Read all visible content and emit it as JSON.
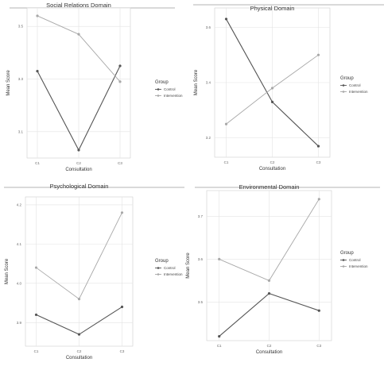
{
  "chart_data": [
    {
      "type": "line",
      "title": "Social Relations Domain",
      "xlabel": "Consultation",
      "ylabel": "Mean Score",
      "categories": [
        "C1",
        "C2",
        "C3"
      ],
      "y_ticks": [
        "3.1",
        "3.3",
        "3.5"
      ],
      "y_tick_values": [
        3.1,
        3.3,
        3.5
      ],
      "ylim": [
        3.0,
        3.57
      ],
      "legend_title": "Group",
      "legend_position": "right",
      "grid": true,
      "series": [
        {
          "name": "Control",
          "values": [
            3.33,
            3.03,
            3.35
          ],
          "color": "#555555"
        },
        {
          "name": "Intervention",
          "values": [
            3.54,
            3.47,
            3.29
          ],
          "color": "#a8a8a8"
        }
      ]
    },
    {
      "type": "line",
      "title": "Physical Domain",
      "xlabel": "Consultation",
      "ylabel": "Mean Score",
      "categories": [
        "C1",
        "C2",
        "C3"
      ],
      "y_ticks": [
        "3.2",
        "3.4",
        "3.6"
      ],
      "y_tick_values": [
        3.2,
        3.4,
        3.6
      ],
      "ylim": [
        3.13,
        3.67
      ],
      "legend_title": "Group",
      "legend_position": "right",
      "grid": true,
      "series": [
        {
          "name": "Control",
          "values": [
            3.63,
            3.33,
            3.17
          ],
          "color": "#555555"
        },
        {
          "name": "Intervention",
          "values": [
            3.25,
            3.38,
            3.5
          ],
          "color": "#a8a8a8"
        }
      ]
    },
    {
      "type": "line",
      "title": "Psychological Domain",
      "xlabel": "Consultation",
      "ylabel": "Mean Score",
      "categories": [
        "C1",
        "C2",
        "C3"
      ],
      "y_ticks": [
        "3.9",
        "4.0",
        "4.1",
        "4.2"
      ],
      "y_tick_values": [
        3.9,
        4.0,
        4.1,
        4.2
      ],
      "ylim": [
        3.84,
        4.22
      ],
      "legend_title": "Group",
      "legend_position": "right",
      "grid": true,
      "series": [
        {
          "name": "Control",
          "values": [
            3.92,
            3.87,
            3.94
          ],
          "color": "#555555"
        },
        {
          "name": "Intervention",
          "values": [
            4.04,
            3.96,
            4.18
          ],
          "color": "#a8a8a8"
        }
      ]
    },
    {
      "type": "line",
      "title": "Environmental Domain",
      "xlabel": "Consultation",
      "ylabel": "Mean Score",
      "categories": [
        "C1",
        "C2",
        "C3"
      ],
      "y_ticks": [
        "3.5",
        "3.6",
        "3.7"
      ],
      "y_tick_values": [
        3.5,
        3.6,
        3.7
      ],
      "ylim": [
        3.41,
        3.76
      ],
      "legend_title": "Group",
      "legend_position": "right",
      "grid": true,
      "series": [
        {
          "name": "Control",
          "values": [
            3.42,
            3.52,
            3.48
          ],
          "color": "#555555"
        },
        {
          "name": "Intervention",
          "values": [
            3.6,
            3.55,
            3.74
          ],
          "color": "#a8a8a8"
        }
      ]
    }
  ]
}
